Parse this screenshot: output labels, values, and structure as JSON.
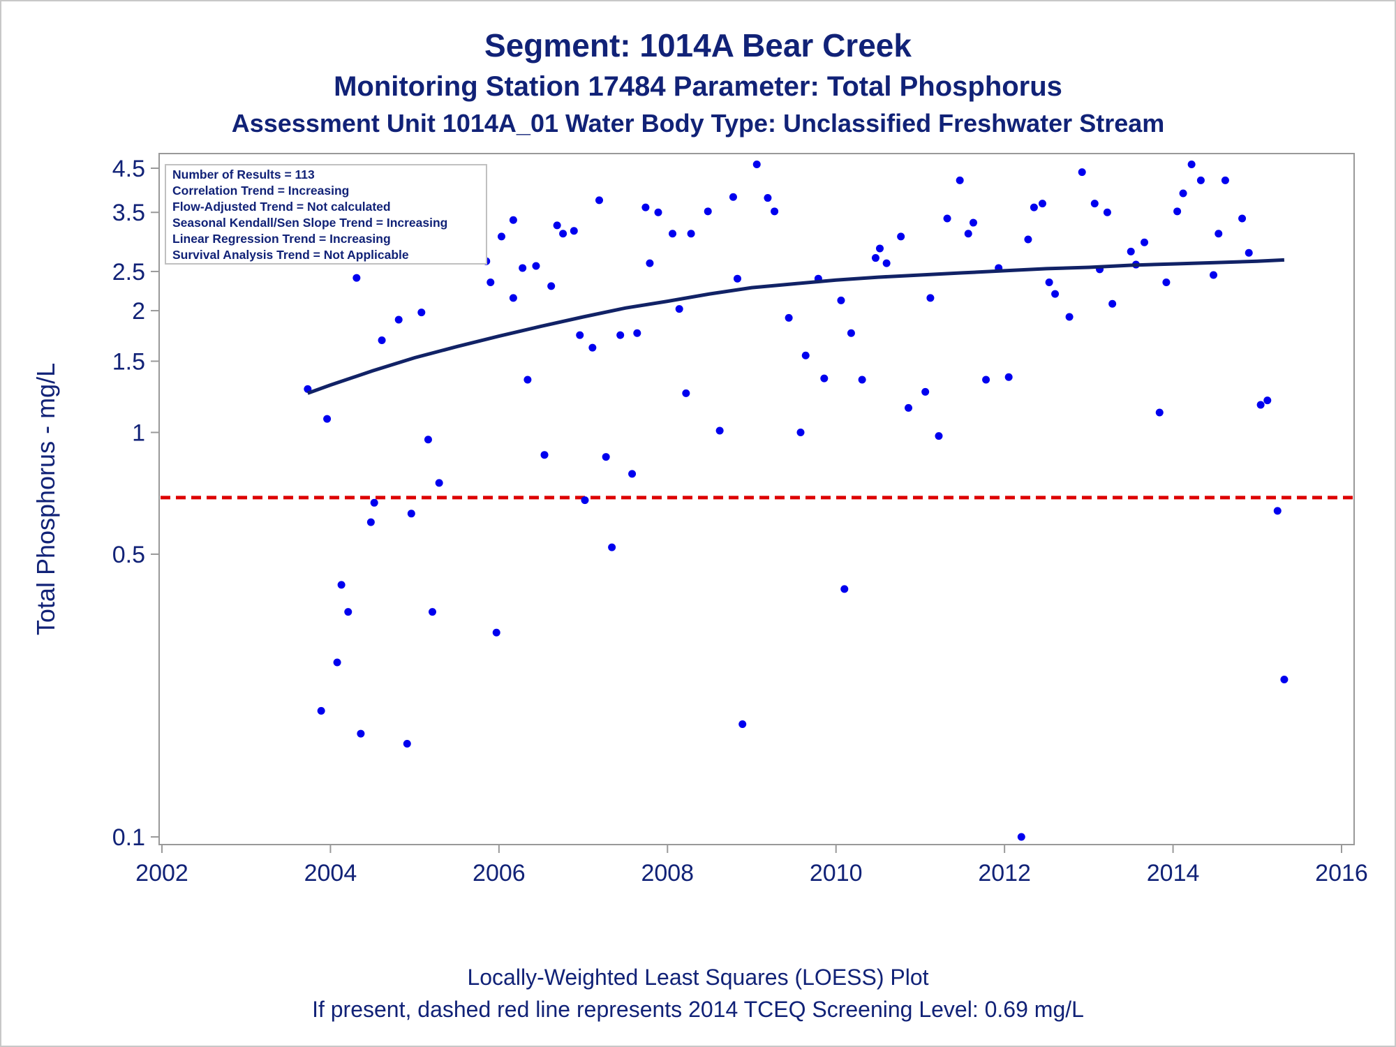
{
  "titles": {
    "line1": "Segment: 1014A  Bear Creek",
    "line2": "Monitoring Station 17484 Parameter: Total Phosphorus",
    "line3": "Assessment Unit 1014A_01   Water Body Type: Unclassified Freshwater Stream"
  },
  "footnotes": {
    "line1": "Locally-Weighted Least Squares (LOESS) Plot",
    "line2": "If present, dashed red line represents 2014 TCEQ Screening Level: 0.69 mg/L"
  },
  "inset": [
    "Number of Results = 113",
    "Correlation Trend = Increasing",
    "Flow-Adjusted Trend = Not calculated",
    "Seasonal Kendall/Sen Slope Trend = Increasing",
    "Linear Regression Trend = Increasing",
    "Survival Analysis Trend = Not Applicable"
  ],
  "colors": {
    "text": "#112277",
    "points": "#0000ee",
    "loess": "#112266",
    "screening": "#dd0000",
    "axis": "#999999"
  },
  "chart_data": {
    "type": "scatter",
    "xlabel": "",
    "ylabel": "Total Phosphorus - mg/L",
    "xlim": [
      2002,
      2016
    ],
    "ylim": [
      0.1,
      4.5
    ],
    "y_scale": "log",
    "x_ticks": [
      "2002",
      "2004",
      "2006",
      "2008",
      "2010",
      "2012",
      "2014",
      "2016"
    ],
    "y_ticks": [
      "0.1",
      "0.5",
      "1",
      "1.5",
      "2",
      "2.5",
      "3.5",
      "4.5"
    ],
    "grid": false,
    "legend": "none",
    "screening_level": 0.69,
    "points": [
      [
        2003.73,
        1.28
      ],
      [
        2003.89,
        0.205
      ],
      [
        2003.96,
        1.08
      ],
      [
        2004.08,
        0.27
      ],
      [
        2004.13,
        0.42
      ],
      [
        2004.21,
        0.36
      ],
      [
        2004.31,
        2.41
      ],
      [
        2004.36,
        0.18
      ],
      [
        2004.48,
        0.6
      ],
      [
        2004.52,
        0.67
      ],
      [
        2004.61,
        1.69
      ],
      [
        2004.77,
        2.8
      ],
      [
        2004.81,
        1.9
      ],
      [
        2004.91,
        0.17
      ],
      [
        2004.96,
        0.63
      ],
      [
        2005.08,
        1.98
      ],
      [
        2005.16,
        0.96
      ],
      [
        2005.21,
        0.36
      ],
      [
        2005.29,
        0.75
      ],
      [
        2005.43,
        2.75
      ],
      [
        2005.74,
        3.0
      ],
      [
        2005.85,
        2.65
      ],
      [
        2005.9,
        2.35
      ],
      [
        2005.97,
        0.32
      ],
      [
        2006.03,
        3.05
      ],
      [
        2006.17,
        3.35
      ],
      [
        2006.17,
        2.15
      ],
      [
        2006.28,
        2.55
      ],
      [
        2006.34,
        1.35
      ],
      [
        2006.44,
        2.58
      ],
      [
        2006.54,
        0.88
      ],
      [
        2006.62,
        2.3
      ],
      [
        2006.69,
        3.25
      ],
      [
        2006.76,
        3.1
      ],
      [
        2006.89,
        3.15
      ],
      [
        2006.96,
        1.74
      ],
      [
        2007.02,
        0.68
      ],
      [
        2007.11,
        1.62
      ],
      [
        2007.19,
        3.75
      ],
      [
        2007.27,
        0.87
      ],
      [
        2007.34,
        0.52
      ],
      [
        2007.44,
        1.74
      ],
      [
        2007.58,
        0.79
      ],
      [
        2007.64,
        1.76
      ],
      [
        2007.74,
        3.6
      ],
      [
        2007.79,
        2.62
      ],
      [
        2007.89,
        3.5
      ],
      [
        2008.06,
        3.1
      ],
      [
        2008.14,
        2.02
      ],
      [
        2008.22,
        1.25
      ],
      [
        2008.28,
        3.1
      ],
      [
        2008.48,
        3.52
      ],
      [
        2008.62,
        1.01
      ],
      [
        2008.78,
        3.82
      ],
      [
        2008.83,
        2.4
      ],
      [
        2008.89,
        0.19
      ],
      [
        2009.06,
        4.6
      ],
      [
        2009.19,
        3.8
      ],
      [
        2009.27,
        3.52
      ],
      [
        2009.44,
        1.92
      ],
      [
        2009.58,
        1.0
      ],
      [
        2009.64,
        1.55
      ],
      [
        2009.79,
        2.4
      ],
      [
        2009.86,
        1.36
      ],
      [
        2010.06,
        2.12
      ],
      [
        2010.1,
        0.41
      ],
      [
        2010.18,
        1.76
      ],
      [
        2010.31,
        1.35
      ],
      [
        2010.47,
        2.7
      ],
      [
        2010.52,
        2.85
      ],
      [
        2010.6,
        2.62
      ],
      [
        2010.77,
        3.05
      ],
      [
        2010.86,
        1.15
      ],
      [
        2011.06,
        1.26
      ],
      [
        2011.12,
        2.15
      ],
      [
        2011.22,
        0.98
      ],
      [
        2011.32,
        3.38
      ],
      [
        2011.47,
        4.2
      ],
      [
        2011.57,
        3.1
      ],
      [
        2011.63,
        3.3
      ],
      [
        2011.78,
        1.35
      ],
      [
        2011.93,
        2.55
      ],
      [
        2012.05,
        1.37
      ],
      [
        2012.2,
        0.1
      ],
      [
        2012.28,
        3.0
      ],
      [
        2012.35,
        3.6
      ],
      [
        2012.45,
        3.68
      ],
      [
        2012.53,
        2.35
      ],
      [
        2012.6,
        2.2
      ],
      [
        2012.77,
        1.93
      ],
      [
        2012.92,
        4.4
      ],
      [
        2013.07,
        3.68
      ],
      [
        2013.13,
        2.53
      ],
      [
        2013.22,
        3.5
      ],
      [
        2013.28,
        2.08
      ],
      [
        2013.5,
        2.8
      ],
      [
        2013.56,
        2.6
      ],
      [
        2013.66,
        2.95
      ],
      [
        2013.84,
        1.12
      ],
      [
        2013.92,
        2.35
      ],
      [
        2014.05,
        3.52
      ],
      [
        2014.12,
        3.9
      ],
      [
        2014.22,
        4.6
      ],
      [
        2014.33,
        4.2
      ],
      [
        2014.48,
        2.45
      ],
      [
        2014.54,
        3.1
      ],
      [
        2014.62,
        4.2
      ],
      [
        2014.82,
        3.38
      ],
      [
        2014.9,
        2.78
      ],
      [
        2015.04,
        1.17
      ],
      [
        2015.12,
        1.2
      ],
      [
        2015.24,
        0.64
      ],
      [
        2015.32,
        0.245
      ]
    ],
    "loess_curve": [
      [
        2003.73,
        1.25
      ],
      [
        2004.0,
        1.31
      ],
      [
        2004.5,
        1.42
      ],
      [
        2005.0,
        1.53
      ],
      [
        2005.5,
        1.63
      ],
      [
        2006.0,
        1.73
      ],
      [
        2006.5,
        1.83
      ],
      [
        2007.0,
        1.93
      ],
      [
        2007.5,
        2.03
      ],
      [
        2008.0,
        2.11
      ],
      [
        2008.5,
        2.2
      ],
      [
        2009.0,
        2.28
      ],
      [
        2009.5,
        2.33
      ],
      [
        2010.0,
        2.38
      ],
      [
        2010.5,
        2.42
      ],
      [
        2011.0,
        2.45
      ],
      [
        2011.5,
        2.48
      ],
      [
        2012.0,
        2.51
      ],
      [
        2012.5,
        2.54
      ],
      [
        2013.0,
        2.56
      ],
      [
        2013.5,
        2.59
      ],
      [
        2014.0,
        2.61
      ],
      [
        2014.5,
        2.63
      ],
      [
        2015.0,
        2.65
      ],
      [
        2015.32,
        2.67
      ]
    ]
  }
}
